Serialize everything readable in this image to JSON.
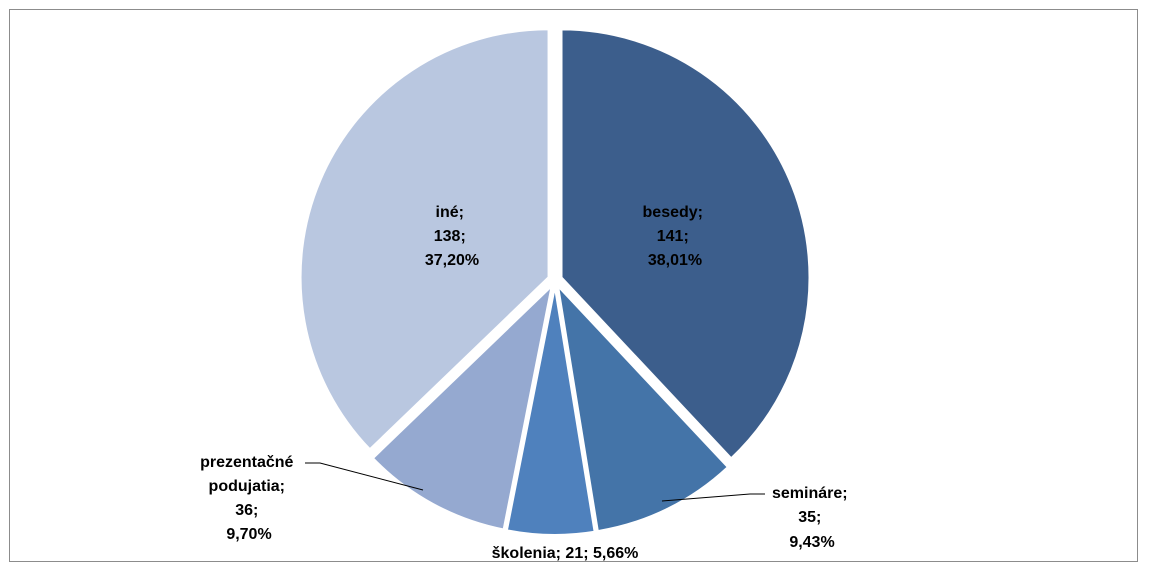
{
  "chart_data": {
    "type": "pie",
    "title": "",
    "slices": [
      {
        "name": "besedy",
        "value": 141,
        "percent": "38,01%",
        "color": "#3c5e8c"
      },
      {
        "name": "semináre",
        "value": 35,
        "percent": "9,43%",
        "color": "#4474a8"
      },
      {
        "name": "školenia",
        "value": 21,
        "percent": "5,66%",
        "color": "#4f81bd"
      },
      {
        "name": "prezentačné podujatia",
        "value": 36,
        "percent": "9,70%",
        "color": "#95a9d0"
      },
      {
        "name": "iné",
        "value": 138,
        "percent": "37,20%",
        "color": "#b9c7e0"
      }
    ],
    "labels": {
      "besedy": [
        "besedy;",
        "141;",
        "38,01%"
      ],
      "seminare": [
        "semináre;",
        "35;",
        "9,43%"
      ],
      "skolenia": [
        "školenia; 21; 5,66%"
      ],
      "prezentacne": [
        "prezentačné",
        "podujatia;",
        "36;",
        "9,70%"
      ],
      "ine": [
        "iné;",
        "138;",
        "37,20%"
      ]
    },
    "legend": "none",
    "exploded": true
  }
}
